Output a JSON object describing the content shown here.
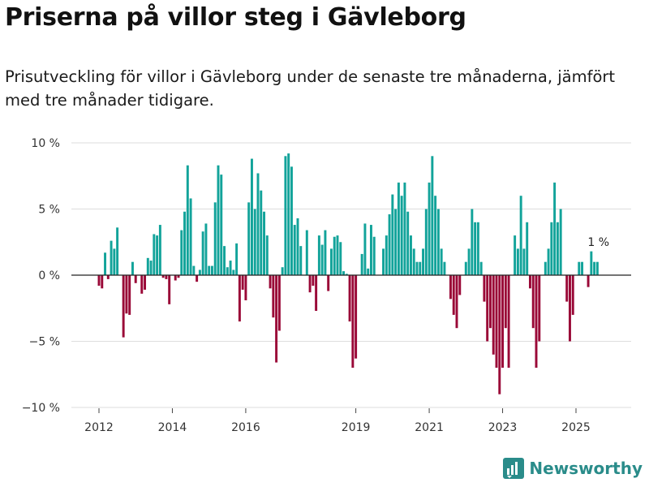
{
  "title": "Priserna på villor steg i Gävleborg",
  "subtitle": "Prisutveckling för villor i Gävleborg under de senaste tre månaderna, jämfört med tre månader tidigare.",
  "brand": {
    "name": "Newsworthy",
    "color": "#2a8c8a",
    "icon": "bar-chart-logo-icon"
  },
  "colors": {
    "positive": "#12a39a",
    "negative": "#9a0837",
    "grid": "#dddddd",
    "axis": "#222222"
  },
  "chart_data": {
    "type": "bar",
    "title": "Priserna på villor steg i Gävleborg",
    "ylabel": "",
    "xlabel": "",
    "ylim": [
      -10,
      10
    ],
    "yticks": [
      {
        "value": 10,
        "label": "10 %"
      },
      {
        "value": 5,
        "label": "5 %"
      },
      {
        "value": 0,
        "label": "0 %"
      },
      {
        "value": -5,
        "label": "−5 %"
      },
      {
        "value": -10,
        "label": "−10 %"
      }
    ],
    "x_start": 2012.0,
    "x_step": 0.0833333,
    "xticks": [
      {
        "value": 2012,
        "label": "2012"
      },
      {
        "value": 2014,
        "label": "2014"
      },
      {
        "value": 2016,
        "label": "2016"
      },
      {
        "value": 2019,
        "label": "2019"
      },
      {
        "value": 2021,
        "label": "2021"
      },
      {
        "value": 2023,
        "label": "2023"
      },
      {
        "value": 2025,
        "label": "2025"
      }
    ],
    "values": [
      -0.8,
      -1.0,
      1.7,
      -0.3,
      2.6,
      2.0,
      3.6,
      0,
      -4.7,
      -2.9,
      -3.0,
      1.0,
      -0.6,
      0,
      -1.4,
      -1.1,
      1.3,
      1.1,
      3.1,
      3.0,
      3.8,
      -0.2,
      -0.3,
      -2.2,
      0,
      -0.4,
      -0.2,
      3.4,
      4.8,
      8.3,
      5.8,
      0.7,
      -0.5,
      0.4,
      3.3,
      3.9,
      0.7,
      0.7,
      5.5,
      8.3,
      7.6,
      2.2,
      0.6,
      1.1,
      0.4,
      2.4,
      -3.5,
      -1.1,
      -1.9,
      5.5,
      8.8,
      5.0,
      7.7,
      6.4,
      4.8,
      3.0,
      -1.0,
      -3.2,
      -6.6,
      -4.2,
      0.6,
      9.0,
      9.2,
      8.2,
      3.8,
      4.3,
      2.2,
      0,
      3.4,
      -1.3,
      -0.8,
      -2.7,
      3.0,
      2.3,
      3.4,
      -1.2,
      2.0,
      2.9,
      3.0,
      2.5,
      0.3,
      0.1,
      -3.5,
      -7.0,
      -6.3,
      0,
      1.6,
      3.9,
      0.5,
      3.8,
      2.9,
      0,
      0,
      2.0,
      3.0,
      4.6,
      6.1,
      5.0,
      7.0,
      6.0,
      7.0,
      4.8,
      3.0,
      2.0,
      1.0,
      1.0,
      2.0,
      5.0,
      7.0,
      9.0,
      6.0,
      5.0,
      2.0,
      1.0,
      0,
      -1.8,
      -3.0,
      -4.0,
      -1.5,
      0,
      1.0,
      2.0,
      5.0,
      4.0,
      4.0,
      1.0,
      -2.0,
      -5.0,
      -4.0,
      -6.0,
      -7.0,
      -9.0,
      -7.0,
      -4.0,
      -7.0,
      0,
      3.0,
      2.0,
      6.0,
      2.0,
      4.0,
      -1.0,
      -4.0,
      -7.0,
      -5.0,
      0,
      1.0,
      2.0,
      4.0,
      7.0,
      4.0,
      5.0,
      0,
      -2.0,
      -5.0,
      -3.0,
      0,
      1.0,
      1.0,
      0,
      -0.9,
      1.8,
      1.0,
      1.0
    ],
    "last_label": "1 %"
  }
}
